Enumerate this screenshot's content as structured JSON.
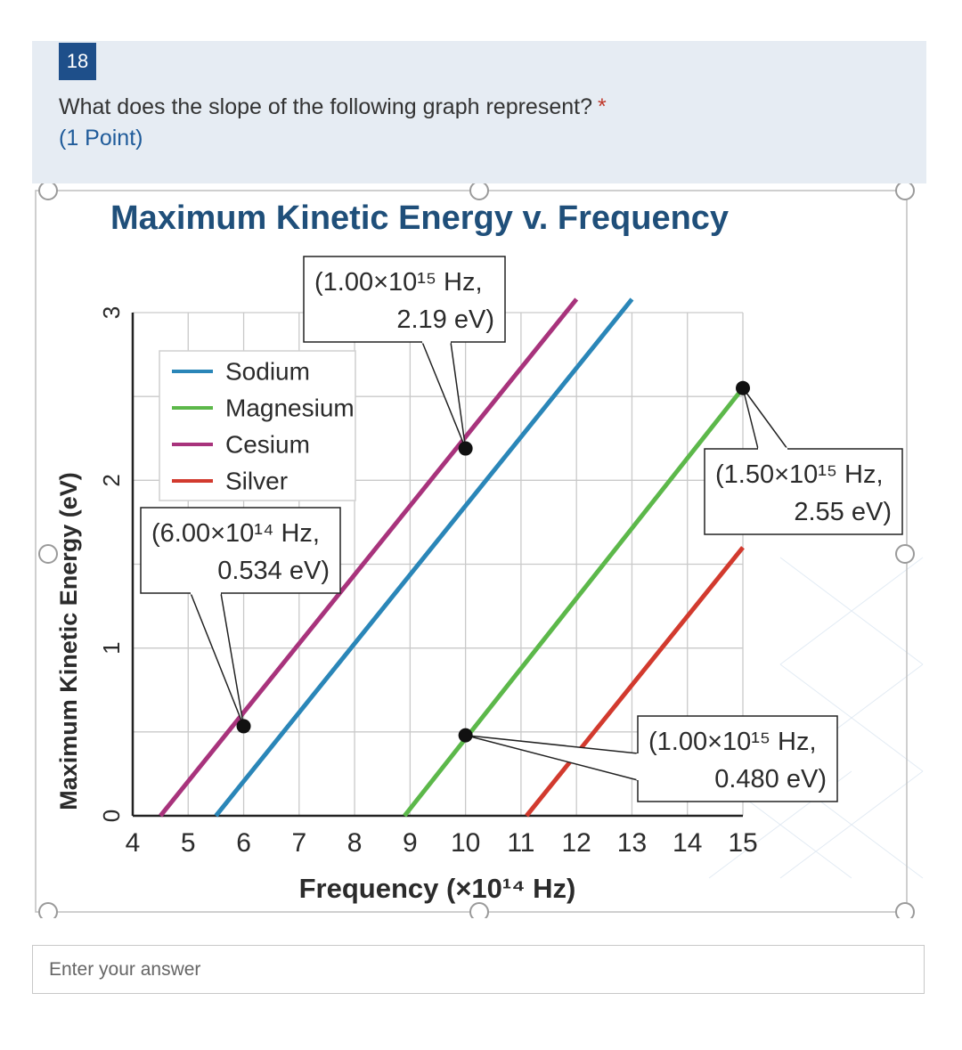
{
  "question": {
    "number": "18",
    "text": "What does the slope of the following graph represent?",
    "required_marker": "*",
    "points": "(1 Point)"
  },
  "answer": {
    "placeholder": "Enter your answer"
  },
  "chart_data": {
    "type": "line",
    "title": "Maximum Kinetic Energy v. Frequency",
    "xlabel": "Frequency (×10¹⁴ Hz)",
    "ylabel": "Maximum Kinetic Energy (eV)",
    "xlim": [
      4,
      15
    ],
    "ylim": [
      0,
      3
    ],
    "x_ticks": [
      "4",
      "5",
      "6",
      "7",
      "8",
      "9",
      "10",
      "11",
      "12",
      "13",
      "14",
      "15"
    ],
    "y_ticks": [
      "0",
      "1",
      "2",
      "3"
    ],
    "grid": true,
    "legend_position": "top-left",
    "series": [
      {
        "name": "Sodium",
        "color": "#2a86b8",
        "x": [
          5.5,
          13.0
        ],
        "y": [
          0.0,
          3.08
        ]
      },
      {
        "name": "Magnesium",
        "color": "#5cb84a",
        "x": [
          8.9,
          15.0
        ],
        "y": [
          0.0,
          2.55
        ]
      },
      {
        "name": "Cesium",
        "color": "#a8337c",
        "x": [
          4.5,
          12.0
        ],
        "y": [
          0.0,
          3.08
        ]
      },
      {
        "name": "Silver",
        "color": "#d23a2e",
        "x": [
          11.1,
          15.0
        ],
        "y": [
          0.0,
          1.6
        ]
      }
    ],
    "annotations": [
      {
        "line1": "(1.00×10¹⁵ Hz,",
        "line2": "2.19 eV)",
        "x": 10.0,
        "y": 2.19
      },
      {
        "line1": "(6.00×10¹⁴ Hz,",
        "line2": "0.534 eV)",
        "x": 6.0,
        "y": 0.534
      },
      {
        "line1": "(1.50×10¹⁵ Hz,",
        "line2": "2.55 eV)",
        "x": 15.0,
        "y": 2.55
      },
      {
        "line1": "(1.00×10¹⁵ Hz,",
        "line2": "0.480 eV)",
        "x": 10.0,
        "y": 0.48
      }
    ]
  }
}
